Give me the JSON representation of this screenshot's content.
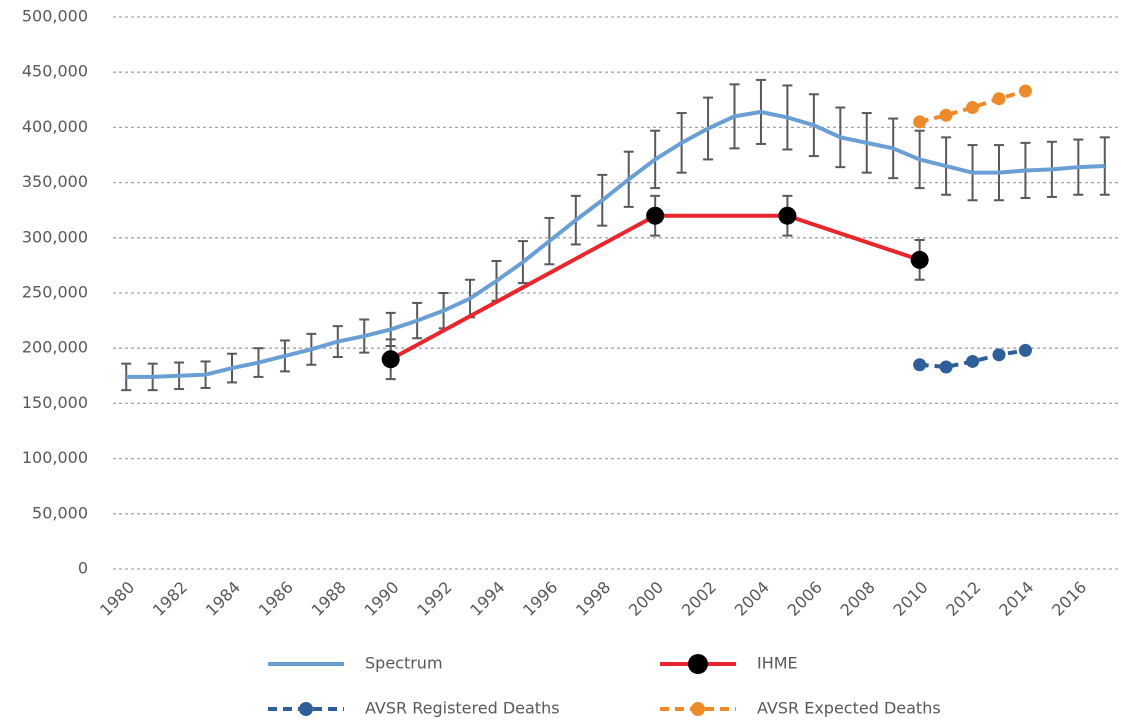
{
  "chart_data": {
    "type": "line",
    "xlim": [
      1979.5,
      2017.5
    ],
    "xticks": [
      1980,
      1982,
      1984,
      1986,
      1988,
      1990,
      1992,
      1994,
      1996,
      1998,
      2000,
      2002,
      2004,
      2006,
      2008,
      2010,
      2012,
      2014,
      2016
    ],
    "ylim": [
      0,
      500000
    ],
    "yticks": [
      0,
      {
        "value": 50000,
        "label": "50,000"
      },
      {
        "value": 100000,
        "label": "100,000"
      },
      {
        "value": 150000,
        "label": "150,000"
      },
      {
        "value": 200000,
        "label": "200,000"
      },
      {
        "value": 250000,
        "label": "250,000"
      },
      {
        "value": 300000,
        "label": "300,000"
      },
      {
        "value": 350000,
        "label": "350,000"
      },
      {
        "value": 400000,
        "label": "400,000"
      },
      {
        "value": 450000,
        "label": "450,000"
      },
      {
        "value": 500000,
        "label": "500,000"
      }
    ],
    "grid": true,
    "legend": "bottom",
    "series": [
      {
        "name": "Spectrum",
        "color": "#6a9fd6",
        "line_style": "solid",
        "x": [
          1980,
          1981,
          1982,
          1983,
          1984,
          1985,
          1986,
          1987,
          1988,
          1989,
          1990,
          1991,
          1992,
          1993,
          1994,
          1995,
          1996,
          1997,
          1998,
          1999,
          2000,
          2001,
          2002,
          2003,
          2004,
          2005,
          2006,
          2007,
          2008,
          2009,
          2010,
          2011,
          2012,
          2013,
          2014,
          2015,
          2016,
          2017
        ],
        "values": [
          174000,
          174000,
          175000,
          176000,
          182000,
          187000,
          193000,
          199000,
          206000,
          211000,
          217000,
          225000,
          234000,
          245000,
          261000,
          278000,
          297000,
          316000,
          334000,
          353000,
          371000,
          386000,
          399000,
          410000,
          414000,
          409000,
          402000,
          391000,
          386000,
          381000,
          371000,
          365000,
          359000,
          359000,
          361000,
          362000,
          364000,
          365000
        ],
        "errors": [
          12000,
          12000,
          12000,
          12000,
          13000,
          13000,
          14000,
          14000,
          14000,
          15000,
          15000,
          16000,
          16000,
          17000,
          18000,
          19000,
          21000,
          22000,
          23000,
          25000,
          26000,
          27000,
          28000,
          29000,
          29000,
          29000,
          28000,
          27000,
          27000,
          27000,
          26000,
          26000,
          25000,
          25000,
          25000,
          25000,
          25000,
          26000
        ],
        "error_color": "#595959"
      },
      {
        "name": "IHME",
        "color": "#e8262e",
        "line_style": "solid",
        "marker_color": "#000000",
        "x": [
          1990,
          2000,
          2005,
          2010
        ],
        "values": [
          190000,
          320000,
          320000,
          280000
        ],
        "errors": [
          18000,
          18000,
          18000,
          18000
        ],
        "error_color": "#595959"
      },
      {
        "name": "AVSR Registered Deaths",
        "color": "#2e5f99",
        "line_style": "dashed",
        "marker_color": "#2e5f99",
        "x": [
          2010,
          2011,
          2012,
          2013,
          2014
        ],
        "values": [
          185000,
          183000,
          188000,
          194000,
          198000
        ]
      },
      {
        "name": "AVSR Expected Deaths",
        "color": "#ed8b2a",
        "line_style": "dashed",
        "marker_color": "#ed8b2a",
        "x": [
          2010,
          2011,
          2012,
          2013,
          2014
        ],
        "values": [
          405000,
          411000,
          418000,
          426000,
          433000
        ]
      }
    ]
  }
}
